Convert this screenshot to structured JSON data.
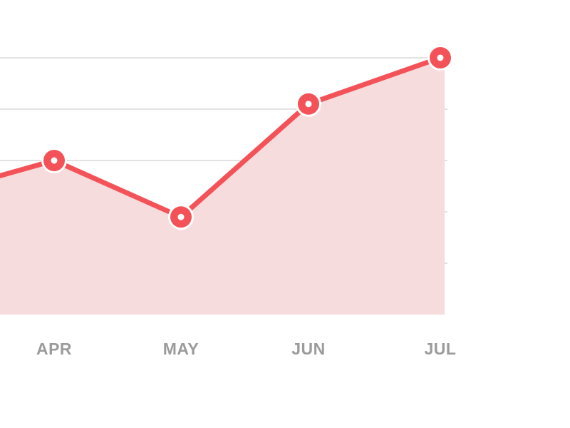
{
  "chart_data": {
    "type": "area",
    "categories": [
      "",
      "APR",
      "MAY",
      "JUN",
      "JUL"
    ],
    "series": [
      {
        "values": [
          3.3,
          4.0,
          2.9,
          5.1,
          6.0
        ]
      }
    ],
    "ylim": [
      1,
      7
    ],
    "grid": true,
    "legend": "none",
    "title": "",
    "xlabel": "",
    "ylabel": ""
  },
  "colors": {
    "line": "#f35358",
    "area_fill": "#f7dcde",
    "marker_fill": "#f35358",
    "marker_ring": "#ffffff",
    "grid": "#e2e2e2",
    "tick_label": "#9b9b9b"
  }
}
